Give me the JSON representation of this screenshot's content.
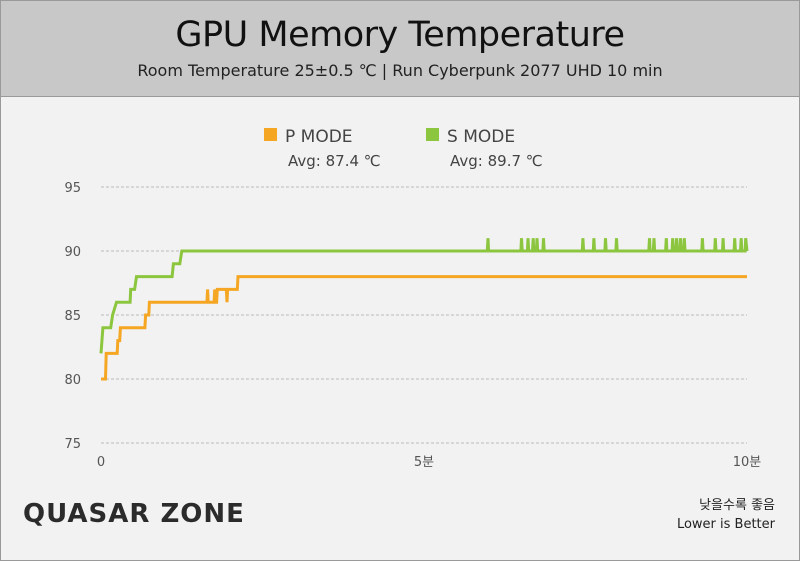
{
  "header": {
    "title": "GPU Memory Temperature",
    "subtitle": "Room Temperature 25±0.5 ℃  |  Run Cyberpunk 2077 UHD 10 min"
  },
  "footer": {
    "logo_text": "QUASAR ZONE",
    "note_korean": "낮을수록 좋음",
    "note_english": "Lower is Better"
  },
  "colors": {
    "p_mode": "#f5a623",
    "s_mode": "#8cc63f",
    "grid": "#bbbbbb"
  },
  "chart_data": {
    "type": "line",
    "title": "GPU Memory Temperature",
    "subtitle": "Room Temperature 25±0.5 ℃  |  Run Cyberpunk 2077 UHD 10 min",
    "xlabel": "",
    "ylabel": "",
    "xlim": [
      0,
      10
    ],
    "ylim": [
      75,
      95
    ],
    "yticks": [
      75,
      80,
      85,
      90,
      95
    ],
    "xticks": [
      0,
      5,
      10
    ],
    "xtick_labels": [
      "0",
      "5분",
      "10분"
    ],
    "grid": true,
    "legend_position": "top-center",
    "series": [
      {
        "name": "P MODE",
        "avg_label": "Avg: 87.4 ℃",
        "color": "#f5a623",
        "points": [
          [
            0.0,
            80
          ],
          [
            0.07,
            80
          ],
          [
            0.08,
            82
          ],
          [
            0.25,
            82
          ],
          [
            0.26,
            83
          ],
          [
            0.29,
            83
          ],
          [
            0.3,
            84
          ],
          [
            0.68,
            84
          ],
          [
            0.69,
            85
          ],
          [
            0.74,
            85
          ],
          [
            0.75,
            86
          ],
          [
            1.64,
            86
          ],
          [
            1.65,
            87
          ],
          [
            1.66,
            86
          ],
          [
            1.75,
            86
          ],
          [
            1.76,
            87
          ],
          [
            1.77,
            86
          ],
          [
            1.79,
            86
          ],
          [
            1.8,
            87
          ],
          [
            1.94,
            87
          ],
          [
            1.95,
            86
          ],
          [
            1.96,
            87
          ],
          [
            2.11,
            87
          ],
          [
            2.12,
            88
          ],
          [
            10.0,
            88
          ]
        ]
      },
      {
        "name": "S MODE",
        "avg_label": "Avg: 89.7 ℃",
        "color": "#8cc63f",
        "points": [
          [
            0.0,
            82
          ],
          [
            0.03,
            84
          ],
          [
            0.15,
            84
          ],
          [
            0.18,
            85
          ],
          [
            0.24,
            86
          ],
          [
            0.45,
            86
          ],
          [
            0.46,
            87
          ],
          [
            0.52,
            87
          ],
          [
            0.55,
            88
          ],
          [
            1.1,
            88
          ],
          [
            1.12,
            89
          ],
          [
            1.22,
            89
          ],
          [
            1.25,
            90
          ],
          [
            5.98,
            90
          ],
          [
            5.99,
            91
          ],
          [
            6.0,
            90
          ],
          [
            6.5,
            90
          ],
          [
            6.51,
            91
          ],
          [
            6.52,
            90
          ],
          [
            6.6,
            90
          ],
          [
            6.61,
            91
          ],
          [
            6.62,
            90
          ],
          [
            6.68,
            90
          ],
          [
            6.69,
            91
          ],
          [
            6.7,
            90
          ],
          [
            6.74,
            90
          ],
          [
            6.75,
            91
          ],
          [
            6.76,
            90
          ],
          [
            6.84,
            90
          ],
          [
            6.85,
            91
          ],
          [
            6.86,
            90
          ],
          [
            7.45,
            90
          ],
          [
            7.46,
            91
          ],
          [
            7.47,
            90
          ],
          [
            7.62,
            90
          ],
          [
            7.63,
            91
          ],
          [
            7.64,
            90
          ],
          [
            7.8,
            90
          ],
          [
            7.81,
            91
          ],
          [
            7.82,
            90
          ],
          [
            7.97,
            90
          ],
          [
            7.98,
            91
          ],
          [
            7.99,
            90
          ],
          [
            8.48,
            90
          ],
          [
            8.49,
            91
          ],
          [
            8.5,
            90
          ],
          [
            8.55,
            90
          ],
          [
            8.56,
            91
          ],
          [
            8.57,
            90
          ],
          [
            8.74,
            90
          ],
          [
            8.75,
            91
          ],
          [
            8.76,
            90
          ],
          [
            8.84,
            90
          ],
          [
            8.85,
            91
          ],
          [
            8.86,
            90
          ],
          [
            8.9,
            90
          ],
          [
            8.91,
            91
          ],
          [
            8.92,
            90
          ],
          [
            8.96,
            90
          ],
          [
            8.97,
            91
          ],
          [
            8.98,
            90
          ],
          [
            9.02,
            90
          ],
          [
            9.03,
            91
          ],
          [
            9.04,
            90
          ],
          [
            9.3,
            90
          ],
          [
            9.31,
            91
          ],
          [
            9.32,
            90
          ],
          [
            9.5,
            90
          ],
          [
            9.51,
            91
          ],
          [
            9.52,
            90
          ],
          [
            9.62,
            90
          ],
          [
            9.63,
            91
          ],
          [
            9.64,
            90
          ],
          [
            9.8,
            90
          ],
          [
            9.81,
            91
          ],
          [
            9.82,
            90
          ],
          [
            9.9,
            90
          ],
          [
            9.91,
            91
          ],
          [
            9.92,
            90
          ],
          [
            9.97,
            90
          ],
          [
            9.98,
            91
          ],
          [
            10.0,
            90
          ]
        ]
      }
    ]
  }
}
